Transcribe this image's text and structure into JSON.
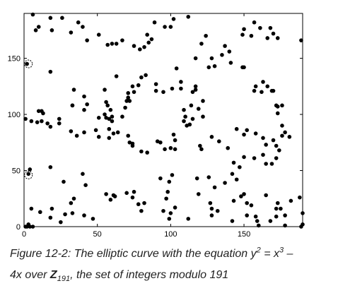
{
  "chart_data": {
    "type": "scatter",
    "title": "",
    "xlabel": "",
    "ylabel": "",
    "xlim": [
      0,
      190
    ],
    "ylim": [
      0,
      190
    ],
    "x_ticks": [
      "0",
      "50",
      "100",
      "150"
    ],
    "y_ticks": [
      "0",
      "50",
      "100",
      "150"
    ],
    "grid": false,
    "marker_color": "#000000",
    "highlighted_points": [
      [
        3,
        145
      ],
      [
        3,
        46
      ]
    ],
    "points": [
      [
        1,
        0
      ],
      [
        2,
        0
      ],
      [
        4,
        0
      ],
      [
        189,
        0
      ],
      [
        6,
        189
      ],
      [
        8,
        175
      ],
      [
        10,
        178
      ],
      [
        18,
        186
      ],
      [
        19,
        175
      ],
      [
        26,
        186
      ],
      [
        32,
        173
      ],
      [
        37,
        182
      ],
      [
        43,
        166
      ],
      [
        40,
        178
      ],
      [
        51,
        171
      ],
      [
        57,
        162
      ],
      [
        60,
        163
      ],
      [
        63,
        163
      ],
      [
        67,
        166
      ],
      [
        75,
        161
      ],
      [
        79,
        158
      ],
      [
        82,
        160
      ],
      [
        85,
        164
      ],
      [
        84,
        171
      ],
      [
        87,
        167
      ],
      [
        89,
        182
      ],
      [
        96,
        178
      ],
      [
        100,
        178
      ],
      [
        102,
        185
      ],
      [
        112,
        187
      ],
      [
        124,
        170
      ],
      [
        121,
        163
      ],
      [
        128,
        150
      ],
      [
        135,
        153
      ],
      [
        137,
        161
      ],
      [
        140,
        156
      ],
      [
        141,
        146
      ],
      [
        149,
        171
      ],
      [
        150,
        176
      ],
      [
        157,
        182
      ],
      [
        155,
        170
      ],
      [
        161,
        177
      ],
      [
        168,
        177
      ],
      [
        166,
        168
      ],
      [
        170,
        172
      ],
      [
        173,
        168
      ],
      [
        189,
        166
      ],
      [
        2,
        145
      ],
      [
        18,
        138
      ],
      [
        34,
        122
      ],
      [
        41,
        116
      ],
      [
        43,
        109
      ],
      [
        33,
        108
      ],
      [
        33,
        108
      ],
      [
        41,
        104
      ],
      [
        55,
        122
      ],
      [
        56,
        111
      ],
      [
        57,
        108
      ],
      [
        59,
        104
      ],
      [
        60,
        98
      ],
      [
        56,
        97
      ],
      [
        51,
        97
      ],
      [
        55,
        100
      ],
      [
        58,
        96
      ],
      [
        67,
        98
      ],
      [
        69,
        106
      ],
      [
        71,
        119
      ],
      [
        71,
        115
      ],
      [
        72,
        112
      ],
      [
        74,
        125
      ],
      [
        75,
        120
      ],
      [
        78,
        126
      ],
      [
        80,
        133
      ],
      [
        83,
        135
      ],
      [
        63,
        134
      ],
      [
        70,
        112
      ],
      [
        90,
        121
      ],
      [
        90,
        127
      ],
      [
        95,
        120
      ],
      [
        101,
        123
      ],
      [
        104,
        141
      ],
      [
        117,
        122
      ],
      [
        117,
        125
      ],
      [
        115,
        120
      ],
      [
        107,
        129
      ],
      [
        107,
        123
      ],
      [
        109,
        104
      ],
      [
        110,
        98
      ],
      [
        111,
        90
      ],
      [
        114,
        108
      ],
      [
        122,
        112
      ],
      [
        119,
        105
      ],
      [
        117,
        150
      ],
      [
        122,
        98
      ],
      [
        126,
        142
      ],
      [
        130,
        143
      ],
      [
        149,
        142
      ],
      [
        150,
        142
      ],
      [
        158,
        125
      ],
      [
        157,
        121
      ],
      [
        162,
        120
      ],
      [
        163,
        129
      ],
      [
        170,
        121
      ],
      [
        172,
        108
      ],
      [
        173,
        107
      ],
      [
        176,
        108
      ],
      [
        173,
        101
      ],
      [
        166,
        125
      ],
      [
        169,
        121
      ],
      [
        1,
        96
      ],
      [
        5,
        94
      ],
      [
        9,
        93
      ],
      [
        10,
        103
      ],
      [
        13,
        101
      ],
      [
        24,
        96
      ],
      [
        24,
        92
      ],
      [
        18,
        89
      ],
      [
        16,
        92
      ],
      [
        32,
        85
      ],
      [
        41,
        84
      ],
      [
        36,
        81
      ],
      [
        49,
        86
      ],
      [
        51,
        80
      ],
      [
        58,
        87
      ],
      [
        61,
        83
      ],
      [
        64,
        84
      ],
      [
        60,
        94
      ],
      [
        58,
        79
      ],
      [
        71,
        81
      ],
      [
        72,
        75
      ],
      [
        74,
        74
      ],
      [
        74,
        72
      ],
      [
        80,
        67
      ],
      [
        84,
        66
      ],
      [
        91,
        76
      ],
      [
        93,
        75
      ],
      [
        100,
        70
      ],
      [
        102,
        82
      ],
      [
        103,
        77
      ],
      [
        103,
        69
      ],
      [
        96,
        69
      ],
      [
        101,
        46
      ],
      [
        109,
        94
      ],
      [
        113,
        91
      ],
      [
        115,
        96
      ],
      [
        120,
        72
      ],
      [
        121,
        69
      ],
      [
        128,
        80
      ],
      [
        133,
        76
      ],
      [
        139,
        70
      ],
      [
        145,
        87
      ],
      [
        150,
        82
      ],
      [
        152,
        86
      ],
      [
        158,
        83
      ],
      [
        163,
        79
      ],
      [
        165,
        73
      ],
      [
        170,
        77
      ],
      [
        172,
        72
      ],
      [
        174,
        68
      ],
      [
        172,
        61
      ],
      [
        176,
        81
      ],
      [
        181,
        80
      ],
      [
        178,
        84
      ],
      [
        176,
        90
      ],
      [
        150,
        62
      ],
      [
        143,
        57
      ],
      [
        147,
        53
      ],
      [
        157,
        61
      ],
      [
        163,
        64
      ],
      [
        165,
        56
      ],
      [
        169,
        56
      ],
      [
        12,
        94
      ],
      [
        12,
        103
      ],
      [
        3,
        47
      ],
      [
        4,
        51
      ],
      [
        18,
        53
      ],
      [
        27,
        40
      ],
      [
        40,
        47
      ],
      [
        42,
        37
      ],
      [
        34,
        25
      ],
      [
        28,
        11
      ],
      [
        33,
        12
      ],
      [
        32,
        21
      ],
      [
        19,
        16
      ],
      [
        11,
        13
      ],
      [
        5,
        16
      ],
      [
        3,
        2
      ],
      [
        6,
        0
      ],
      [
        25,
        4
      ],
      [
        18,
        8
      ],
      [
        41,
        10
      ],
      [
        47,
        7
      ],
      [
        56,
        29
      ],
      [
        61,
        28
      ],
      [
        59,
        24
      ],
      [
        62,
        27
      ],
      [
        70,
        30
      ],
      [
        75,
        31
      ],
      [
        74,
        26
      ],
      [
        78,
        20
      ],
      [
        80,
        14
      ],
      [
        82,
        21
      ],
      [
        93,
        43
      ],
      [
        99,
        40
      ],
      [
        98,
        31
      ],
      [
        97,
        25
      ],
      [
        95,
        14
      ],
      [
        99,
        7
      ],
      [
        100,
        12
      ],
      [
        103,
        17
      ],
      [
        112,
        7
      ],
      [
        118,
        43
      ],
      [
        119,
        29
      ],
      [
        127,
        21
      ],
      [
        128,
        16
      ],
      [
        128,
        10
      ],
      [
        132,
        14
      ],
      [
        142,
        5
      ],
      [
        143,
        23
      ],
      [
        148,
        27
      ],
      [
        152,
        21
      ],
      [
        152,
        10
      ],
      [
        155,
        19
      ],
      [
        158,
        9
      ],
      [
        159,
        5
      ],
      [
        160,
        1
      ],
      [
        168,
        5
      ],
      [
        172,
        9
      ],
      [
        172,
        16
      ],
      [
        175,
        16
      ],
      [
        178,
        10
      ],
      [
        178,
        1
      ],
      [
        165,
        28
      ],
      [
        173,
        21
      ],
      [
        182,
        23
      ],
      [
        188,
        26
      ],
      [
        190,
        12
      ],
      [
        190,
        2
      ],
      [
        130,
        35
      ],
      [
        137,
        39
      ],
      [
        142,
        47
      ],
      [
        145,
        42
      ],
      [
        150,
        29
      ],
      [
        126,
        44
      ]
    ]
  },
  "caption": {
    "part1": "Figure 12-2: The elliptic curve with the equation y",
    "exp1": "2",
    "part2": " = x",
    "exp2": "3",
    "part3": " –",
    "part4": "4x over ",
    "bold_z": "Z",
    "subscript": "191",
    "part5": ", the set of integers modulo 191"
  }
}
